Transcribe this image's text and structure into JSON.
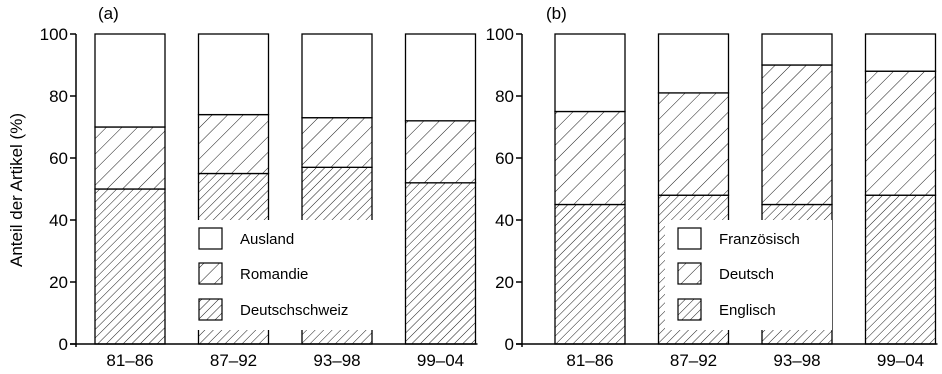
{
  "chart_data": [
    {
      "type": "bar",
      "stacked": true,
      "panel_label": "(a)",
      "categories": [
        "81–86",
        "87–92",
        "93–98",
        "99–04"
      ],
      "ylabel": "Anteil der Artikel (%)",
      "ylim": [
        0,
        100
      ],
      "yticks": [
        "0",
        "20",
        "40",
        "60",
        "80",
        "100"
      ],
      "series": [
        {
          "name": "Deutschschweiz",
          "values": [
            50,
            55,
            57,
            52
          ],
          "fill": "dense-hatch"
        },
        {
          "name": "Romandie",
          "values": [
            20,
            19,
            16,
            20
          ],
          "fill": "sparse-hatch"
        },
        {
          "name": "Ausland",
          "values": [
            30,
            26,
            27,
            28
          ],
          "fill": "white"
        }
      ],
      "legend_order": [
        "Ausland",
        "Romandie",
        "Deutschschweiz"
      ],
      "legend_position": "bottom-right"
    },
    {
      "type": "bar",
      "stacked": true,
      "panel_label": "(b)",
      "categories": [
        "81–86",
        "87–92",
        "93–98",
        "99–04"
      ],
      "ylim": [
        0,
        100
      ],
      "yticks": [
        "0",
        "20",
        "40",
        "60",
        "80",
        "100"
      ],
      "series": [
        {
          "name": "Englisch",
          "values": [
            45,
            48,
            45,
            48
          ],
          "fill": "dense-hatch"
        },
        {
          "name": "Deutsch",
          "values": [
            30,
            33,
            45,
            40
          ],
          "fill": "sparse-hatch"
        },
        {
          "name": "Französisch",
          "values": [
            25,
            19,
            10,
            12
          ],
          "fill": "white"
        }
      ],
      "legend_order": [
        "Französisch",
        "Deutsch",
        "Englisch"
      ],
      "legend_position": "bottom-left"
    }
  ]
}
